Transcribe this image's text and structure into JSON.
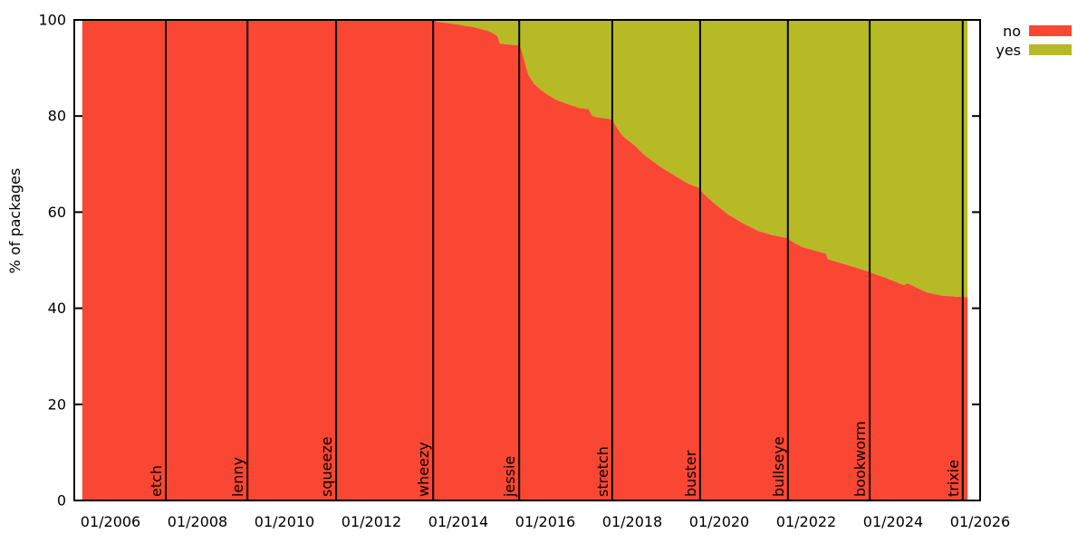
{
  "chart_data": {
    "type": "area",
    "stacked": true,
    "title": "",
    "ylabel": "% of packages",
    "xlabel": "",
    "ylim": [
      0,
      100
    ],
    "xlim_years": [
      2005.1667,
      2026.0
    ],
    "grid": false,
    "legend_position": "outside-top-right",
    "y_ticks": [
      0,
      20,
      40,
      60,
      80,
      100
    ],
    "x_ticks": [
      {
        "year": 2006,
        "label": "01/2006"
      },
      {
        "year": 2008,
        "label": "01/2008"
      },
      {
        "year": 2010,
        "label": "01/2010"
      },
      {
        "year": 2012,
        "label": "01/2012"
      },
      {
        "year": 2014,
        "label": "01/2014"
      },
      {
        "year": 2016,
        "label": "01/2016"
      },
      {
        "year": 2018,
        "label": "01/2018"
      },
      {
        "year": 2020,
        "label": "01/2020"
      },
      {
        "year": 2022,
        "label": "01/2022"
      },
      {
        "year": 2024,
        "label": "01/2024"
      },
      {
        "year": 2026,
        "label": "01/2026"
      }
    ],
    "legend": [
      {
        "name": "no",
        "color": "#fa4733"
      },
      {
        "name": "yes",
        "color": "#b6ba25"
      }
    ],
    "releases": [
      {
        "name": "etch",
        "year": 2007.27
      },
      {
        "name": "lenny",
        "year": 2009.15
      },
      {
        "name": "squeeze",
        "year": 2011.19
      },
      {
        "name": "wheezy",
        "year": 2013.42
      },
      {
        "name": "jessie",
        "year": 2015.4
      },
      {
        "name": "stretch",
        "year": 2017.54
      },
      {
        "name": "buster",
        "year": 2019.56
      },
      {
        "name": "bullseye",
        "year": 2021.58
      },
      {
        "name": "bookworm",
        "year": 2023.46
      },
      {
        "name": "trixie",
        "year": 2025.6
      }
    ],
    "series": [
      {
        "name": "no",
        "color": "#fa4733",
        "points_year_pct": [
          [
            2005.35,
            100
          ],
          [
            2013.4,
            100
          ],
          [
            2013.52,
            99.6
          ],
          [
            2014.0,
            99.0
          ],
          [
            2014.35,
            98.5
          ],
          [
            2014.7,
            97.7
          ],
          [
            2014.85,
            96.9
          ],
          [
            2014.9,
            96.6
          ],
          [
            2014.95,
            95.1
          ],
          [
            2015.13,
            94.9
          ],
          [
            2015.38,
            94.7
          ],
          [
            2015.44,
            94.1
          ],
          [
            2015.5,
            92.2
          ],
          [
            2015.55,
            90.3
          ],
          [
            2015.62,
            88.4
          ],
          [
            2015.75,
            86.6
          ],
          [
            2015.96,
            85.0
          ],
          [
            2016.24,
            83.4
          ],
          [
            2016.5,
            82.5
          ],
          [
            2016.78,
            81.7
          ],
          [
            2017.0,
            81.4
          ],
          [
            2017.08,
            80.0
          ],
          [
            2017.2,
            79.7
          ],
          [
            2017.53,
            79.3
          ],
          [
            2017.63,
            77.8
          ],
          [
            2017.77,
            75.9
          ],
          [
            2018.04,
            74.0
          ],
          [
            2018.25,
            72.1
          ],
          [
            2018.6,
            69.7
          ],
          [
            2018.94,
            67.8
          ],
          [
            2019.29,
            65.9
          ],
          [
            2019.55,
            65.0
          ],
          [
            2019.62,
            64.0
          ],
          [
            2019.85,
            62.1
          ],
          [
            2020.19,
            59.6
          ],
          [
            2020.54,
            57.7
          ],
          [
            2020.89,
            56.1
          ],
          [
            2021.23,
            55.2
          ],
          [
            2021.57,
            54.6
          ],
          [
            2021.72,
            53.6
          ],
          [
            2021.93,
            52.7
          ],
          [
            2022.27,
            51.8
          ],
          [
            2022.45,
            51.4
          ],
          [
            2022.5,
            50.2
          ],
          [
            2022.97,
            48.9
          ],
          [
            2023.31,
            48.0
          ],
          [
            2023.45,
            47.6
          ],
          [
            2023.6,
            47.0
          ],
          [
            2023.81,
            46.4
          ],
          [
            2024.08,
            45.4
          ],
          [
            2024.25,
            44.8
          ],
          [
            2024.33,
            45.2
          ],
          [
            2024.77,
            43.3
          ],
          [
            2025.13,
            42.6
          ],
          [
            2025.48,
            42.4
          ],
          [
            2025.71,
            42.3
          ]
        ]
      },
      {
        "name": "yes",
        "color": "#b6ba25",
        "note": "stacked remainder: fills from the 'no' boundary up to 100%"
      }
    ]
  },
  "colors": {
    "background": "#ffffff",
    "axis": "#000000",
    "text": "#000000"
  }
}
